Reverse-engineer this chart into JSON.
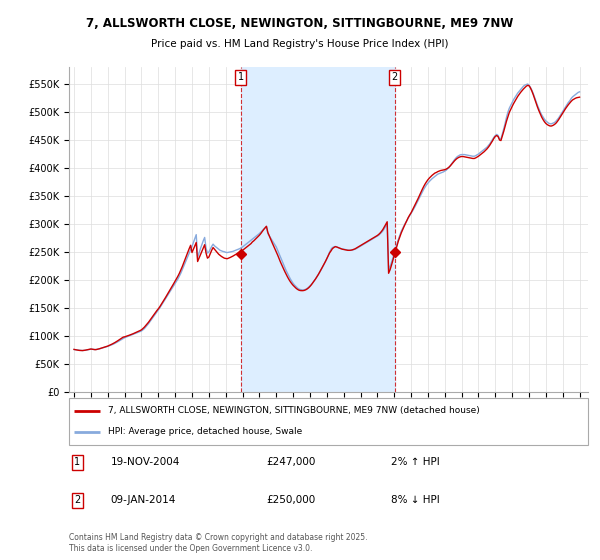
{
  "title": "7, ALLSWORTH CLOSE, NEWINGTON, SITTINGBOURNE, ME9 7NW",
  "subtitle": "Price paid vs. HM Land Registry's House Price Index (HPI)",
  "legend_line1": "7, ALLSWORTH CLOSE, NEWINGTON, SITTINGBOURNE, ME9 7NW (detached house)",
  "legend_line2": "HPI: Average price, detached house, Swale",
  "annotation1_date": "19-NOV-2004",
  "annotation1_price": "£247,000",
  "annotation1_hpi": "2% ↑ HPI",
  "annotation2_date": "09-JAN-2014",
  "annotation2_price": "£250,000",
  "annotation2_hpi": "8% ↓ HPI",
  "copyright": "Contains HM Land Registry data © Crown copyright and database right 2025.\nThis data is licensed under the Open Government Licence v3.0.",
  "sale1_year": 2004.9,
  "sale1_value": 247000,
  "sale2_year": 2014.03,
  "sale2_value": 250000,
  "line_color_property": "#cc0000",
  "line_color_hpi": "#88aadd",
  "shade_color": "#ddeeff",
  "background_color": "#ffffff",
  "grid_color": "#dddddd",
  "ylim": [
    0,
    580000
  ],
  "yticks": [
    0,
    50000,
    100000,
    150000,
    200000,
    250000,
    300000,
    350000,
    400000,
    450000,
    500000,
    550000
  ],
  "xlim_start": 1995.0,
  "xlim_end": 2025.5,
  "hpi_years": [
    1995,
    1995.083,
    1995.167,
    1995.25,
    1995.333,
    1995.417,
    1995.5,
    1995.583,
    1995.667,
    1995.75,
    1995.833,
    1995.917,
    1996,
    1996.083,
    1996.167,
    1996.25,
    1996.333,
    1996.417,
    1996.5,
    1996.583,
    1996.667,
    1996.75,
    1996.833,
    1996.917,
    1997,
    1997.083,
    1997.167,
    1997.25,
    1997.333,
    1997.417,
    1997.5,
    1997.583,
    1997.667,
    1997.75,
    1997.833,
    1997.917,
    1998,
    1998.083,
    1998.167,
    1998.25,
    1998.333,
    1998.417,
    1998.5,
    1998.583,
    1998.667,
    1998.75,
    1998.833,
    1998.917,
    1999,
    1999.083,
    1999.167,
    1999.25,
    1999.333,
    1999.417,
    1999.5,
    1999.583,
    1999.667,
    1999.75,
    1999.833,
    1999.917,
    2000,
    2000.083,
    2000.167,
    2000.25,
    2000.333,
    2000.417,
    2000.5,
    2000.583,
    2000.667,
    2000.75,
    2000.833,
    2000.917,
    2001,
    2001.083,
    2001.167,
    2001.25,
    2001.333,
    2001.417,
    2001.5,
    2001.583,
    2001.667,
    2001.75,
    2001.833,
    2001.917,
    2002,
    2002.083,
    2002.167,
    2002.25,
    2002.333,
    2002.417,
    2002.5,
    2002.583,
    2002.667,
    2002.75,
    2002.833,
    2002.917,
    2003,
    2003.083,
    2003.167,
    2003.25,
    2003.333,
    2003.417,
    2003.5,
    2003.583,
    2003.667,
    2003.75,
    2003.833,
    2003.917,
    2004,
    2004.083,
    2004.167,
    2004.25,
    2004.333,
    2004.417,
    2004.5,
    2004.583,
    2004.667,
    2004.75,
    2004.833,
    2004.917,
    2005,
    2005.083,
    2005.167,
    2005.25,
    2005.333,
    2005.417,
    2005.5,
    2005.583,
    2005.667,
    2005.75,
    2005.833,
    2005.917,
    2006,
    2006.083,
    2006.167,
    2006.25,
    2006.333,
    2006.417,
    2006.5,
    2006.583,
    2006.667,
    2006.75,
    2006.833,
    2006.917,
    2007,
    2007.083,
    2007.167,
    2007.25,
    2007.333,
    2007.417,
    2007.5,
    2007.583,
    2007.667,
    2007.75,
    2007.833,
    2007.917,
    2008,
    2008.083,
    2008.167,
    2008.25,
    2008.333,
    2008.417,
    2008.5,
    2008.583,
    2008.667,
    2008.75,
    2008.833,
    2008.917,
    2009,
    2009.083,
    2009.167,
    2009.25,
    2009.333,
    2009.417,
    2009.5,
    2009.583,
    2009.667,
    2009.75,
    2009.833,
    2009.917,
    2010,
    2010.083,
    2010.167,
    2010.25,
    2010.333,
    2010.417,
    2010.5,
    2010.583,
    2010.667,
    2010.75,
    2010.833,
    2010.917,
    2011,
    2011.083,
    2011.167,
    2011.25,
    2011.333,
    2011.417,
    2011.5,
    2011.583,
    2011.667,
    2011.75,
    2011.833,
    2011.917,
    2012,
    2012.083,
    2012.167,
    2012.25,
    2012.333,
    2012.417,
    2012.5,
    2012.583,
    2012.667,
    2012.75,
    2012.833,
    2012.917,
    2013,
    2013.083,
    2013.167,
    2013.25,
    2013.333,
    2013.417,
    2013.5,
    2013.583,
    2013.667,
    2013.75,
    2013.833,
    2013.917,
    2014,
    2014.083,
    2014.167,
    2014.25,
    2014.333,
    2014.417,
    2014.5,
    2014.583,
    2014.667,
    2014.75,
    2014.833,
    2014.917,
    2015,
    2015.083,
    2015.167,
    2015.25,
    2015.333,
    2015.417,
    2015.5,
    2015.583,
    2015.667,
    2015.75,
    2015.833,
    2015.917,
    2016,
    2016.083,
    2016.167,
    2016.25,
    2016.333,
    2016.417,
    2016.5,
    2016.583,
    2016.667,
    2016.75,
    2016.833,
    2016.917,
    2017,
    2017.083,
    2017.167,
    2017.25,
    2017.333,
    2017.417,
    2017.5,
    2017.583,
    2017.667,
    2017.75,
    2017.833,
    2017.917,
    2018,
    2018.083,
    2018.167,
    2018.25,
    2018.333,
    2018.417,
    2018.5,
    2018.583,
    2018.667,
    2018.75,
    2018.833,
    2018.917,
    2019,
    2019.083,
    2019.167,
    2019.25,
    2019.333,
    2019.417,
    2019.5,
    2019.583,
    2019.667,
    2019.75,
    2019.833,
    2019.917,
    2020,
    2020.083,
    2020.167,
    2020.25,
    2020.333,
    2020.417,
    2020.5,
    2020.583,
    2020.667,
    2020.75,
    2020.833,
    2020.917,
    2021,
    2021.083,
    2021.167,
    2021.25,
    2021.333,
    2021.417,
    2021.5,
    2021.583,
    2021.667,
    2021.75,
    2021.833,
    2021.917,
    2022,
    2022.083,
    2022.167,
    2022.25,
    2022.333,
    2022.417,
    2022.5,
    2022.583,
    2022.667,
    2022.75,
    2022.833,
    2022.917,
    2023,
    2023.083,
    2023.167,
    2023.25,
    2023.333,
    2023.417,
    2023.5,
    2023.583,
    2023.667,
    2023.75,
    2023.833,
    2023.917,
    2024,
    2024.083,
    2024.167,
    2024.25,
    2024.333,
    2024.417,
    2024.5,
    2024.583,
    2024.667,
    2024.75,
    2024.833,
    2024.917,
    2025
  ],
  "hpi_values": [
    76000,
    75500,
    75200,
    74800,
    74500,
    74200,
    74000,
    74200,
    74500,
    75000,
    75500,
    76000,
    76500,
    76200,
    76000,
    75800,
    76000,
    76500,
    77000,
    77800,
    78500,
    79200,
    80000,
    80800,
    81500,
    82500,
    83500,
    84500,
    85500,
    86800,
    88000,
    89500,
    91000,
    92500,
    94000,
    95500,
    97000,
    98000,
    99000,
    100000,
    101000,
    102000,
    103000,
    104000,
    105000,
    106000,
    107000,
    108000,
    109000,
    111000,
    113000,
    116000,
    119000,
    122000,
    125500,
    129000,
    132500,
    136000,
    139500,
    143000,
    146500,
    150000,
    154000,
    158000,
    162000,
    166000,
    170000,
    174000,
    178000,
    182000,
    186000,
    190000,
    194000,
    198000,
    202000,
    207000,
    212000,
    218000,
    224000,
    230000,
    236000,
    242000,
    248000,
    254000,
    260000,
    267000,
    274000,
    281000,
    240000,
    248000,
    256000,
    263000,
    270000,
    276000,
    257000,
    248000,
    250000,
    255000,
    260000,
    264000,
    261000,
    259000,
    257000,
    255000,
    253000,
    252000,
    251000,
    250500,
    249500,
    249000,
    249500,
    250000,
    250500,
    251000,
    252000,
    253000,
    254000,
    255000,
    256000,
    257500,
    259000,
    261000,
    263000,
    265000,
    267000,
    269000,
    271000,
    273000,
    275000,
    277000,
    279000,
    281000,
    283000,
    285500,
    288000,
    290500,
    293000,
    295500,
    283000,
    279000,
    275000,
    271000,
    267000,
    263000,
    259000,
    253000,
    247000,
    241000,
    235000,
    229000,
    223000,
    217000,
    212000,
    207000,
    202000,
    198000,
    194000,
    191000,
    188500,
    186000,
    184000,
    183000,
    182500,
    182000,
    182500,
    183500,
    185000,
    187000,
    189500,
    192000,
    195000,
    198500,
    202000,
    206000,
    210000,
    214000,
    218500,
    223000,
    228000,
    233000,
    238000,
    244000,
    250000,
    255000,
    258000,
    259000,
    260000,
    259000,
    258000,
    257000,
    256000,
    255500,
    255000,
    254500,
    254000,
    253500,
    253000,
    253000,
    253500,
    254000,
    255000,
    256000,
    257500,
    259000,
    260500,
    262000,
    263500,
    265000,
    266500,
    268000,
    269500,
    271000,
    272500,
    274000,
    275500,
    277000,
    278500,
    280000,
    282500,
    285000,
    288000,
    292000,
    296000,
    300500,
    219000,
    224000,
    231000,
    239000,
    248000,
    257000,
    265000,
    273000,
    280000,
    287000,
    292000,
    297000,
    302000,
    306000,
    311000,
    315000,
    319000,
    323000,
    327500,
    332000,
    337000,
    342000,
    347000,
    352000,
    357000,
    362000,
    366000,
    370000,
    373000,
    376000,
    378500,
    381000,
    383000,
    385000,
    387000,
    389000,
    390000,
    391000,
    392000,
    393000,
    394500,
    396000,
    398500,
    401000,
    404500,
    408000,
    411500,
    415000,
    418000,
    420500,
    422000,
    423500,
    424000,
    424000,
    424000,
    423500,
    423000,
    422500,
    422000,
    421500,
    421000,
    421000,
    422000,
    423500,
    425000,
    427000,
    429000,
    431000,
    433000,
    435000,
    437000,
    440000,
    443000,
    447000,
    451000,
    455000,
    458000,
    460000,
    458000,
    452000,
    452000,
    461000,
    470000,
    480000,
    491000,
    500000,
    507000,
    512000,
    517000,
    522000,
    526000,
    530000,
    534000,
    537000,
    540000,
    543000,
    546000,
    548000,
    549000,
    550000,
    548000,
    544000,
    539000,
    533000,
    526000,
    519000,
    512000,
    506000,
    500000,
    495000,
    491000,
    487000,
    484000,
    482000,
    480000,
    479000,
    479000,
    480000,
    481000,
    483000,
    486000,
    489000,
    493000,
    497000,
    501000,
    505000,
    509000,
    513000,
    517000,
    520000,
    524000,
    527000,
    529000,
    531000,
    533000,
    535000,
    536000
  ],
  "prop_values": [
    76000,
    75500,
    75000,
    74600,
    74200,
    74000,
    74000,
    74300,
    74700,
    75200,
    75800,
    76400,
    76800,
    76400,
    76000,
    75600,
    75900,
    76500,
    77200,
    78000,
    78800,
    79600,
    80400,
    81200,
    82000,
    83100,
    84300,
    85500,
    86800,
    88200,
    89700,
    91300,
    93000,
    94700,
    96400,
    98000,
    98500,
    99300,
    100200,
    101100,
    102000,
    103000,
    104000,
    105100,
    106200,
    107300,
    108500,
    109700,
    111000,
    113200,
    115600,
    118500,
    121500,
    124500,
    128000,
    131500,
    135000,
    138500,
    142000,
    145500,
    148500,
    152000,
    156000,
    160000,
    164000,
    168200,
    172500,
    176800,
    181000,
    185200,
    189500,
    193800,
    198000,
    202500,
    207000,
    212000,
    217500,
    223500,
    230000,
    236500,
    243000,
    249500,
    256000,
    262000,
    249000,
    255000,
    261000,
    267000,
    233000,
    239000,
    245000,
    251000,
    257000,
    263000,
    248000,
    239000,
    241000,
    247000,
    253000,
    258000,
    255000,
    252000,
    249000,
    246000,
    244000,
    242000,
    240500,
    239000,
    238500,
    238000,
    239000,
    240000,
    241200,
    242500,
    244000,
    245500,
    247000,
    248500,
    250000,
    251500,
    253000,
    255000,
    257000,
    259000,
    261000,
    263000,
    265000,
    268000,
    270000,
    272500,
    275000,
    277500,
    280000,
    283000,
    286500,
    290000,
    293000,
    296000,
    285000,
    279000,
    273000,
    267000,
    261500,
    256000,
    250500,
    244500,
    238000,
    232000,
    226500,
    221000,
    215500,
    210500,
    205500,
    201000,
    197000,
    193500,
    190500,
    188000,
    185500,
    183500,
    182000,
    181200,
    181000,
    181000,
    181500,
    182500,
    184000,
    186000,
    188500,
    191500,
    195000,
    198500,
    202000,
    206000,
    210000,
    214500,
    219000,
    223500,
    228000,
    233000,
    238000,
    243000,
    248500,
    252000,
    256000,
    258000,
    259500,
    259000,
    258000,
    257000,
    256000,
    255000,
    254500,
    254000,
    253500,
    253000,
    253000,
    253200,
    253700,
    254500,
    255500,
    257000,
    258500,
    260000,
    261500,
    263000,
    264500,
    266000,
    267500,
    269000,
    270500,
    272000,
    273500,
    275000,
    276500,
    278000,
    279500,
    281500,
    284000,
    287000,
    290500,
    295000,
    299500,
    304000,
    212000,
    218000,
    226000,
    235000,
    244000,
    253000,
    262000,
    270000,
    277000,
    284000,
    290000,
    295500,
    301000,
    306000,
    311500,
    316000,
    320000,
    325000,
    330000,
    335000,
    340000,
    345500,
    351000,
    356500,
    362000,
    367000,
    371500,
    375500,
    379000,
    382000,
    384500,
    387000,
    389000,
    391000,
    392000,
    393500,
    394500,
    395500,
    396000,
    396500,
    397000,
    398000,
    399500,
    401500,
    404000,
    407000,
    410000,
    413000,
    415500,
    417500,
    419000,
    420000,
    420500,
    420500,
    420000,
    419500,
    419000,
    418500,
    418000,
    417500,
    417000,
    417000,
    418000,
    419500,
    421000,
    423000,
    425000,
    427000,
    429000,
    431500,
    434000,
    437000,
    440500,
    444500,
    448500,
    453000,
    456500,
    458000,
    456000,
    450000,
    449000,
    457000,
    465500,
    475000,
    484000,
    492000,
    499500,
    505000,
    510000,
    515000,
    519500,
    524000,
    528000,
    531500,
    535000,
    538000,
    541000,
    543500,
    546000,
    547500,
    547000,
    543000,
    537500,
    531000,
    523500,
    516000,
    509000,
    502500,
    496500,
    491000,
    486500,
    482500,
    479500,
    477500,
    476000,
    475000,
    475000,
    476000,
    477500,
    479500,
    482500,
    486000,
    490000,
    494000,
    498000,
    502000,
    506000,
    509500,
    513000,
    516000,
    519000,
    521500,
    523000,
    524500,
    525500,
    526000,
    526500
  ]
}
